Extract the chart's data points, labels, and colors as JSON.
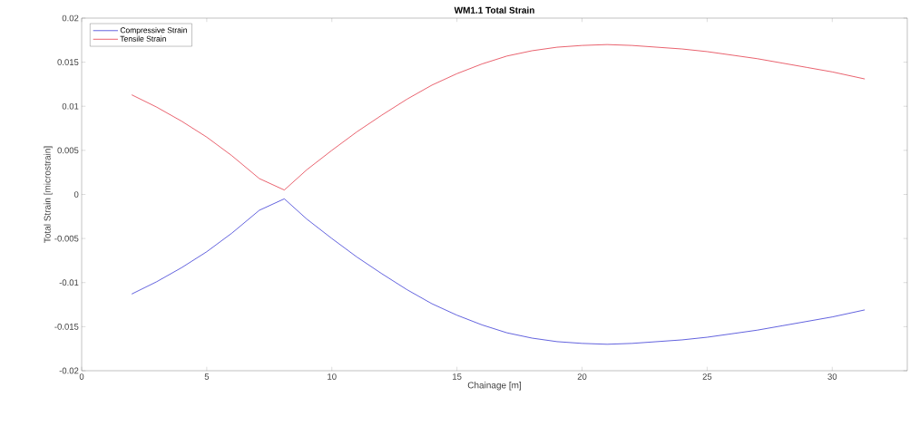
{
  "chart_data": {
    "type": "line",
    "title": "WM1.1 Total Strain",
    "xlabel": "Chainage [m]",
    "ylabel": "Total Strain [microstrain]",
    "x": [
      2,
      3,
      4,
      5,
      6,
      7.1,
      8.1,
      9,
      10,
      11,
      12,
      13,
      14,
      15,
      16,
      17,
      18,
      19,
      20,
      21,
      22,
      23,
      24,
      25,
      26,
      27,
      28,
      29,
      30,
      31.3
    ],
    "series": [
      {
        "name": "Compressive Strain",
        "color": "#1f1fd0",
        "values": [
          -0.0113,
          -0.0099,
          -0.0083,
          -0.0065,
          -0.0044,
          -0.0018,
          -0.0005,
          -0.0028,
          -0.005,
          -0.0071,
          -0.009,
          -0.0108,
          -0.0124,
          -0.0137,
          -0.0148,
          -0.0157,
          -0.0163,
          -0.0167,
          -0.0169,
          -0.017,
          -0.0169,
          -0.0167,
          -0.0165,
          -0.0162,
          -0.0158,
          -0.0154,
          -0.0149,
          -0.0144,
          -0.0139,
          -0.0131
        ]
      },
      {
        "name": "Tensile Strain",
        "color": "#e02030",
        "values": [
          0.0113,
          0.0099,
          0.0083,
          0.0065,
          0.0044,
          0.0018,
          0.0005,
          0.0028,
          0.005,
          0.0071,
          0.009,
          0.0108,
          0.0124,
          0.0137,
          0.0148,
          0.0157,
          0.0163,
          0.0167,
          0.0169,
          0.017,
          0.0169,
          0.0167,
          0.0165,
          0.0162,
          0.0158,
          0.0154,
          0.0149,
          0.0144,
          0.0139,
          0.0131
        ]
      }
    ],
    "xlim": [
      0,
      33
    ],
    "ylim": [
      -0.02,
      0.02
    ],
    "xticks": [
      0,
      5,
      10,
      15,
      20,
      25,
      30
    ],
    "yticks": [
      -0.02,
      -0.015,
      -0.01,
      -0.005,
      0,
      0.005,
      0.01,
      0.015,
      0.02
    ],
    "legend": "top left",
    "grid": false,
    "marker": "none",
    "line_style": "solid"
  }
}
